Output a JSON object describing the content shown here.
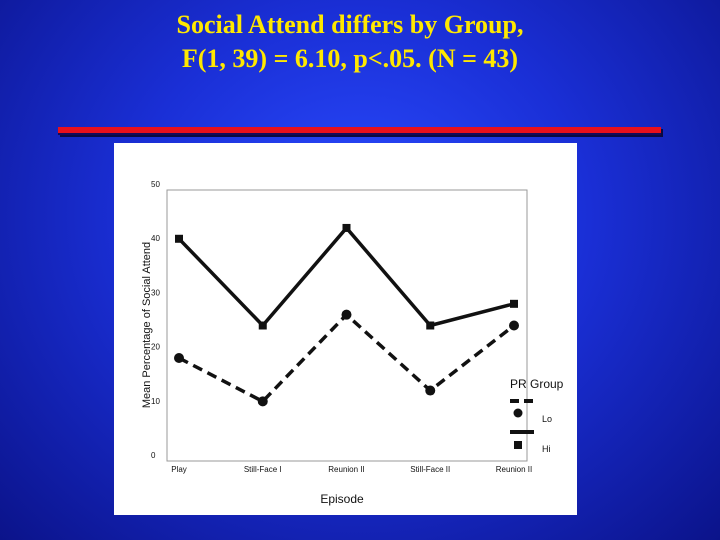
{
  "slide": {
    "title_line1": "Social Attend differs by Group,",
    "title_line2": "F(1, 39) = 6.10, p<.05. (N = 43)"
  },
  "colors": {
    "title": "#ffe800",
    "rule": "#e8101c",
    "background": "#1a2fd6"
  },
  "chart_data": {
    "type": "line",
    "xlabel": "Episode",
    "ylabel": "Mean Percentage of Social Attend",
    "categories": [
      "Play",
      "Still-Face I",
      "Reunion II",
      "Still-Face II",
      "Reunion II"
    ],
    "ylim": [
      0,
      50
    ],
    "yticks": [
      0,
      10,
      20,
      30,
      40,
      50
    ],
    "grid": false,
    "legend": {
      "title": "PR Group",
      "placement": "bottom-right"
    },
    "series": [
      {
        "name": "Lo",
        "line": "dashed",
        "marker": "circle",
        "values": [
          19,
          11,
          27,
          13,
          25
        ]
      },
      {
        "name": "Hi",
        "line": "solid",
        "marker": "square",
        "values": [
          41,
          25,
          43,
          25,
          29
        ]
      }
    ]
  }
}
